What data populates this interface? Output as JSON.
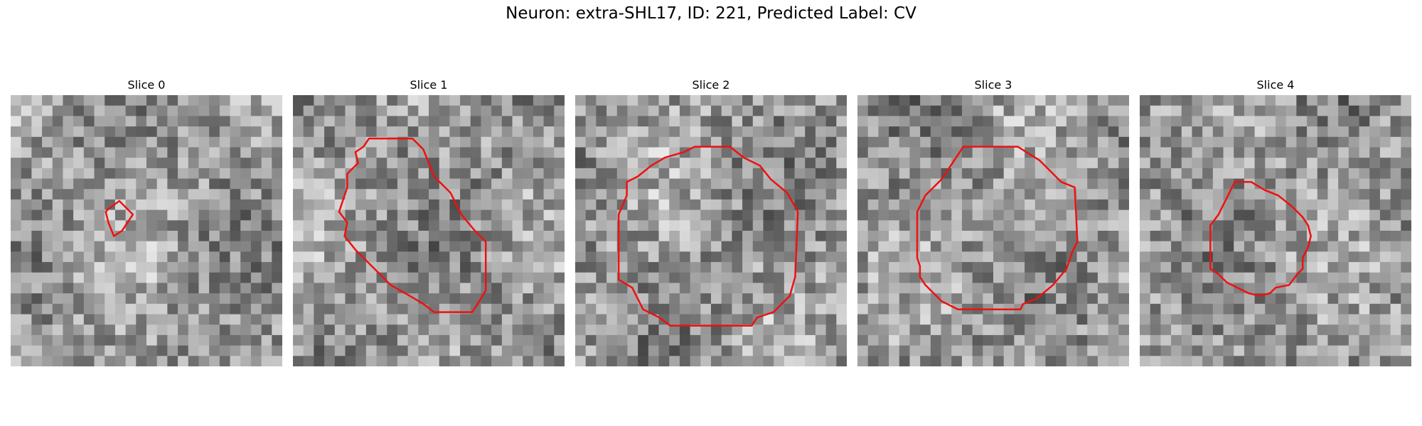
{
  "figure": {
    "title": "Neuron: extra-SHL17, ID: 221, Predicted Label: CV"
  },
  "outline_color": "#ee1111",
  "panels": [
    {
      "title": "Slice 0",
      "seed": 11,
      "contour": [
        [
          0.36,
          0.42
        ],
        [
          0.4,
          0.39
        ],
        [
          0.45,
          0.44
        ],
        [
          0.41,
          0.5
        ],
        [
          0.38,
          0.52
        ],
        [
          0.36,
          0.47
        ],
        [
          0.35,
          0.43
        ]
      ]
    },
    {
      "title": "Slice 1",
      "seed": 23,
      "contour": [
        [
          0.28,
          0.16
        ],
        [
          0.44,
          0.16
        ],
        [
          0.48,
          0.2
        ],
        [
          0.52,
          0.3
        ],
        [
          0.58,
          0.36
        ],
        [
          0.62,
          0.44
        ],
        [
          0.67,
          0.5
        ],
        [
          0.71,
          0.54
        ],
        [
          0.71,
          0.72
        ],
        [
          0.68,
          0.77
        ],
        [
          0.66,
          0.8
        ],
        [
          0.52,
          0.8
        ],
        [
          0.48,
          0.77
        ],
        [
          0.43,
          0.74
        ],
        [
          0.36,
          0.7
        ],
        [
          0.29,
          0.63
        ],
        [
          0.23,
          0.57
        ],
        [
          0.19,
          0.52
        ],
        [
          0.2,
          0.47
        ],
        [
          0.17,
          0.43
        ],
        [
          0.2,
          0.34
        ],
        [
          0.2,
          0.29
        ],
        [
          0.24,
          0.25
        ],
        [
          0.23,
          0.21
        ],
        [
          0.26,
          0.19
        ]
      ]
    },
    {
      "title": "Slice 2",
      "seed": 37,
      "contour": [
        [
          0.33,
          0.23
        ],
        [
          0.4,
          0.21
        ],
        [
          0.44,
          0.19
        ],
        [
          0.57,
          0.19
        ],
        [
          0.62,
          0.23
        ],
        [
          0.68,
          0.26
        ],
        [
          0.72,
          0.31
        ],
        [
          0.78,
          0.36
        ],
        [
          0.82,
          0.43
        ],
        [
          0.81,
          0.67
        ],
        [
          0.79,
          0.74
        ],
        [
          0.73,
          0.8
        ],
        [
          0.67,
          0.82
        ],
        [
          0.65,
          0.85
        ],
        [
          0.35,
          0.85
        ],
        [
          0.31,
          0.82
        ],
        [
          0.25,
          0.79
        ],
        [
          0.21,
          0.71
        ],
        [
          0.16,
          0.68
        ],
        [
          0.16,
          0.44
        ],
        [
          0.19,
          0.37
        ],
        [
          0.19,
          0.32
        ],
        [
          0.23,
          0.3
        ],
        [
          0.28,
          0.26
        ]
      ]
    },
    {
      "title": "Slice 3",
      "seed": 41,
      "contour": [
        [
          0.39,
          0.19
        ],
        [
          0.59,
          0.19
        ],
        [
          0.67,
          0.24
        ],
        [
          0.7,
          0.27
        ],
        [
          0.75,
          0.32
        ],
        [
          0.8,
          0.34
        ],
        [
          0.81,
          0.54
        ],
        [
          0.79,
          0.58
        ],
        [
          0.77,
          0.64
        ],
        [
          0.72,
          0.7
        ],
        [
          0.66,
          0.75
        ],
        [
          0.61,
          0.77
        ],
        [
          0.6,
          0.79
        ],
        [
          0.37,
          0.79
        ],
        [
          0.31,
          0.76
        ],
        [
          0.25,
          0.7
        ],
        [
          0.23,
          0.67
        ],
        [
          0.23,
          0.63
        ],
        [
          0.22,
          0.6
        ],
        [
          0.22,
          0.43
        ],
        [
          0.25,
          0.37
        ],
        [
          0.31,
          0.31
        ],
        [
          0.35,
          0.25
        ]
      ]
    },
    {
      "title": "Slice 4",
      "seed": 53,
      "contour": [
        [
          0.35,
          0.32
        ],
        [
          0.41,
          0.32
        ],
        [
          0.46,
          0.35
        ],
        [
          0.51,
          0.37
        ],
        [
          0.56,
          0.41
        ],
        [
          0.6,
          0.45
        ],
        [
          0.62,
          0.48
        ],
        [
          0.63,
          0.52
        ],
        [
          0.62,
          0.56
        ],
        [
          0.6,
          0.6
        ],
        [
          0.6,
          0.64
        ],
        [
          0.58,
          0.66
        ],
        [
          0.55,
          0.7
        ],
        [
          0.5,
          0.71
        ],
        [
          0.48,
          0.73
        ],
        [
          0.44,
          0.74
        ],
        [
          0.4,
          0.73
        ],
        [
          0.36,
          0.71
        ],
        [
          0.32,
          0.69
        ],
        [
          0.29,
          0.66
        ],
        [
          0.26,
          0.64
        ],
        [
          0.26,
          0.48
        ],
        [
          0.29,
          0.44
        ],
        [
          0.31,
          0.4
        ],
        [
          0.33,
          0.36
        ]
      ]
    }
  ]
}
